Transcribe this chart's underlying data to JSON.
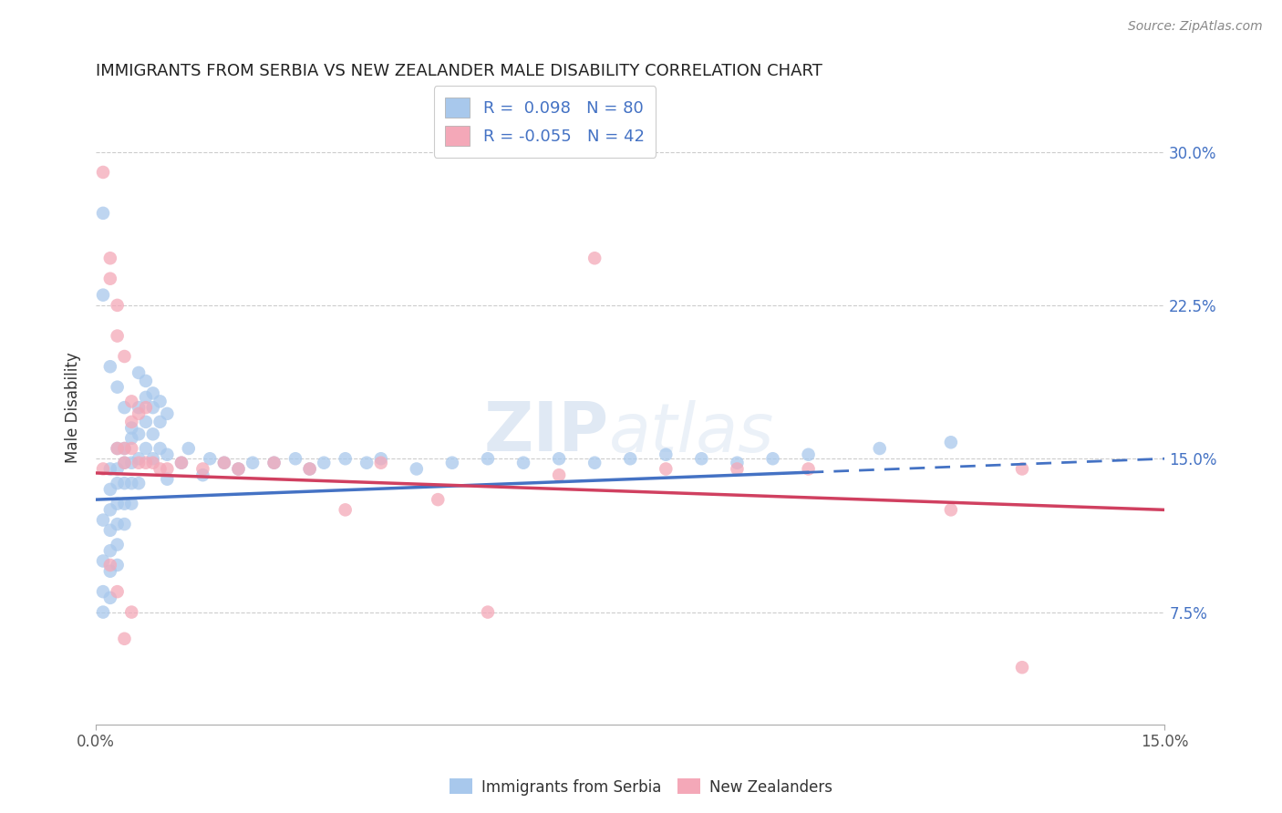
{
  "title": "IMMIGRANTS FROM SERBIA VS NEW ZEALANDER MALE DISABILITY CORRELATION CHART",
  "source": "Source: ZipAtlas.com",
  "ylabel": "Male Disability",
  "y_ticks": [
    0.075,
    0.15,
    0.225,
    0.3
  ],
  "y_tick_labels": [
    "7.5%",
    "15.0%",
    "22.5%",
    "30.0%"
  ],
  "xlim": [
    0.0,
    0.15
  ],
  "ylim": [
    0.02,
    0.33
  ],
  "color_blue": "#A8C8EC",
  "color_pink": "#F4A8B8",
  "color_blue_line": "#4472C4",
  "color_pink_line": "#D04060",
  "watermark_zip": "ZIP",
  "watermark_atlas": "atlas",
  "blue_scatter_x": [
    0.001,
    0.001,
    0.001,
    0.001,
    0.001,
    0.002,
    0.002,
    0.002,
    0.002,
    0.002,
    0.002,
    0.002,
    0.003,
    0.003,
    0.003,
    0.003,
    0.003,
    0.003,
    0.003,
    0.004,
    0.004,
    0.004,
    0.004,
    0.004,
    0.005,
    0.005,
    0.005,
    0.005,
    0.006,
    0.006,
    0.006,
    0.006,
    0.007,
    0.007,
    0.007,
    0.008,
    0.008,
    0.008,
    0.009,
    0.009,
    0.01,
    0.01,
    0.012,
    0.013,
    0.015,
    0.016,
    0.018,
    0.02,
    0.022,
    0.025,
    0.028,
    0.03,
    0.032,
    0.035,
    0.038,
    0.04,
    0.045,
    0.05,
    0.055,
    0.06,
    0.065,
    0.07,
    0.075,
    0.08,
    0.085,
    0.09,
    0.095,
    0.1,
    0.11,
    0.12,
    0.001,
    0.002,
    0.003,
    0.004,
    0.005,
    0.006,
    0.007,
    0.008,
    0.009,
    0.01
  ],
  "blue_scatter_y": [
    0.27,
    0.12,
    0.1,
    0.085,
    0.075,
    0.145,
    0.135,
    0.125,
    0.115,
    0.105,
    0.095,
    0.082,
    0.155,
    0.145,
    0.138,
    0.128,
    0.118,
    0.108,
    0.098,
    0.155,
    0.148,
    0.138,
    0.128,
    0.118,
    0.16,
    0.148,
    0.138,
    0.128,
    0.175,
    0.162,
    0.15,
    0.138,
    0.18,
    0.168,
    0.155,
    0.175,
    0.162,
    0.15,
    0.168,
    0.155,
    0.152,
    0.14,
    0.148,
    0.155,
    0.142,
    0.15,
    0.148,
    0.145,
    0.148,
    0.148,
    0.15,
    0.145,
    0.148,
    0.15,
    0.148,
    0.15,
    0.145,
    0.148,
    0.15,
    0.148,
    0.15,
    0.148,
    0.15,
    0.152,
    0.15,
    0.148,
    0.15,
    0.152,
    0.155,
    0.158,
    0.23,
    0.195,
    0.185,
    0.175,
    0.165,
    0.192,
    0.188,
    0.182,
    0.178,
    0.172
  ],
  "pink_scatter_x": [
    0.001,
    0.001,
    0.002,
    0.002,
    0.003,
    0.003,
    0.003,
    0.004,
    0.004,
    0.004,
    0.005,
    0.005,
    0.006,
    0.006,
    0.007,
    0.007,
    0.008,
    0.009,
    0.01,
    0.012,
    0.015,
    0.018,
    0.02,
    0.025,
    0.03,
    0.035,
    0.04,
    0.048,
    0.055,
    0.065,
    0.07,
    0.08,
    0.09,
    0.1,
    0.12,
    0.13,
    0.002,
    0.003,
    0.004,
    0.005,
    0.005,
    0.13
  ],
  "pink_scatter_y": [
    0.145,
    0.29,
    0.248,
    0.238,
    0.225,
    0.21,
    0.155,
    0.2,
    0.155,
    0.148,
    0.178,
    0.155,
    0.172,
    0.148,
    0.175,
    0.148,
    0.148,
    0.145,
    0.145,
    0.148,
    0.145,
    0.148,
    0.145,
    0.148,
    0.145,
    0.125,
    0.148,
    0.13,
    0.075,
    0.142,
    0.248,
    0.145,
    0.145,
    0.145,
    0.125,
    0.145,
    0.098,
    0.085,
    0.062,
    0.075,
    0.168,
    0.048
  ]
}
